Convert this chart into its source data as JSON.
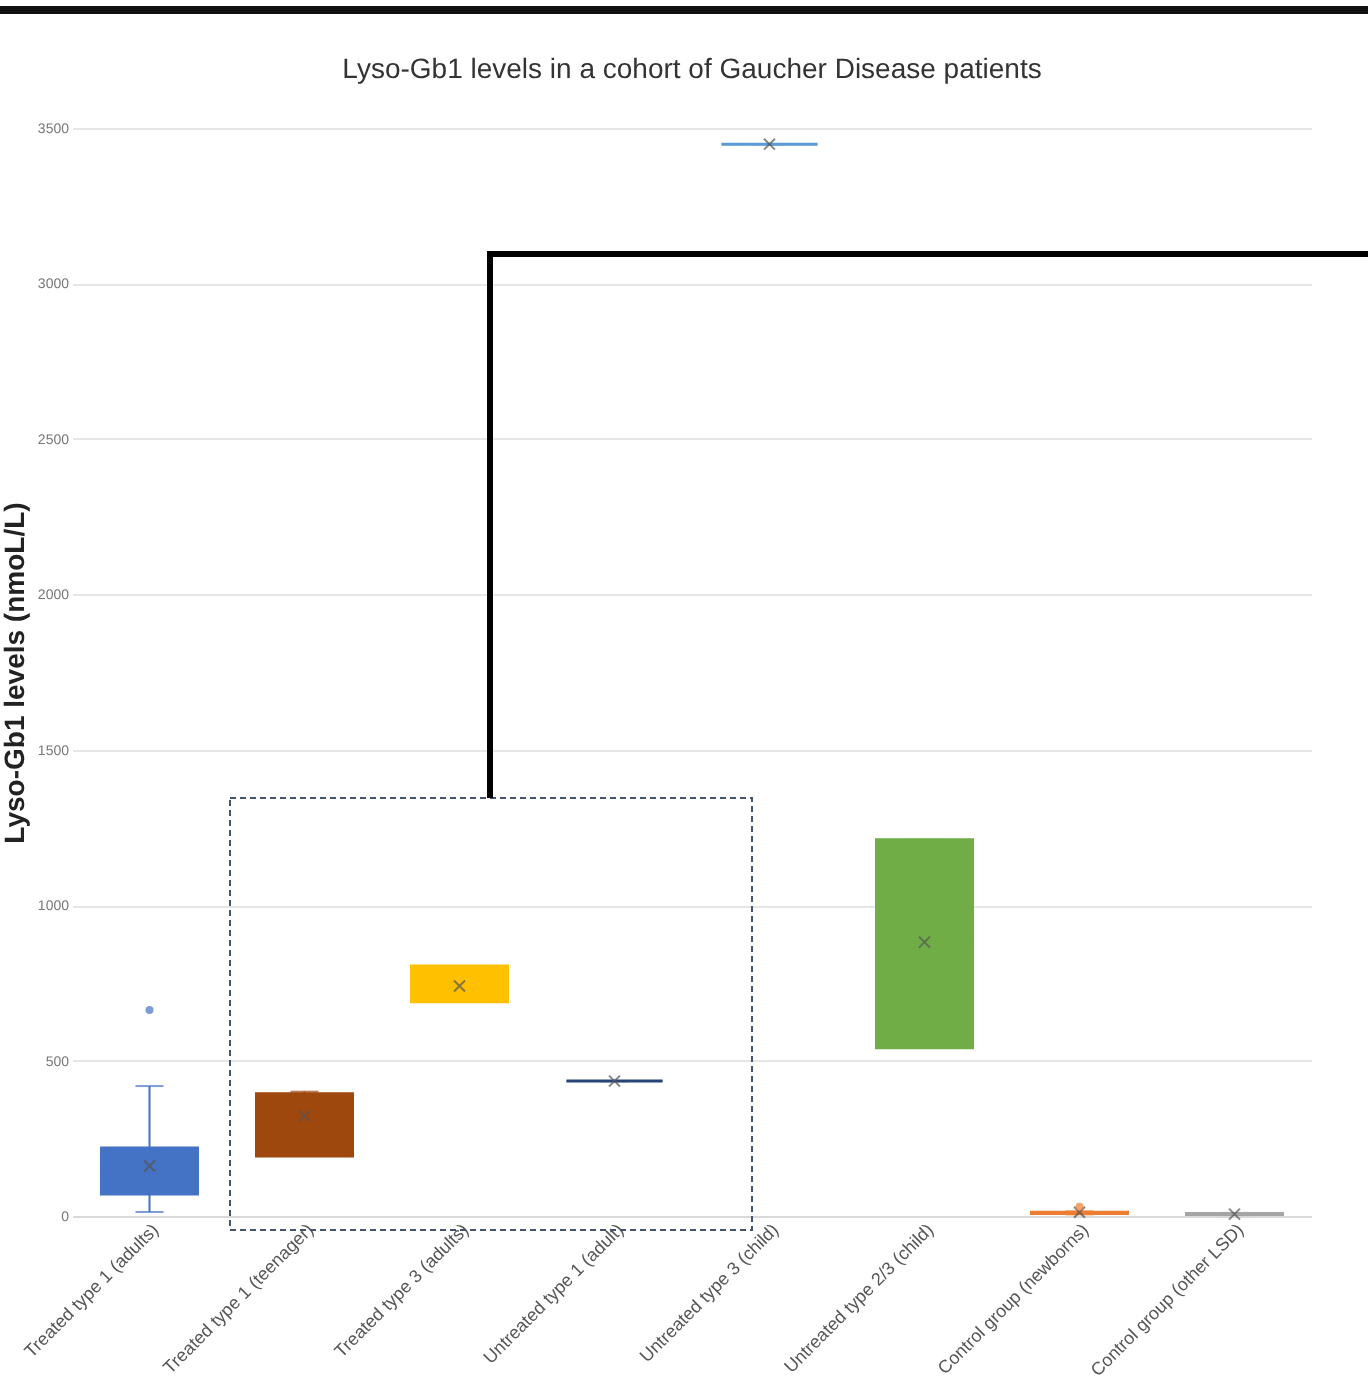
{
  "chart_data": {
    "type": "box",
    "title": "Lyso-Gb1 levels in a cohort of Gaucher Disease patients",
    "ylabel": "Lyso-Gb1 levels (nmoL/L)",
    "categories": [
      "Treated type 1 (adults)",
      "Treated type 1 (teenager)",
      "Treated type 3 (adults)",
      "Untreated type 1 (adult)",
      "Untreated type 3 (child)",
      "Untreated type 2/3 (child)",
      "Control group (newborns)",
      "Control group (other LSD)"
    ],
    "colors": [
      "#4472c4",
      "#9e480e",
      "#ffc000",
      "#264478",
      "#5b9bd5",
      "#70ad47",
      "#ed7d31",
      "#a5a5a5"
    ],
    "boxes": [
      {
        "low": 13,
        "q1": 71,
        "median": 140,
        "q3": 219,
        "high": 418,
        "mean": 161,
        "outliers": [
          663
        ]
      },
      {
        "low": 193,
        "q1": 193,
        "median": 310,
        "q3": 393,
        "high": 400,
        "mean": 322
      },
      {
        "low": 689,
        "q1": 689,
        "median": 740,
        "q3": 804,
        "high": 804,
        "mean": 740
      },
      {
        "low": 434,
        "q1": 434,
        "median": 434,
        "q3": 434,
        "high": 434,
        "mean": 434
      },
      {
        "low": 3448,
        "q1": 3448,
        "median": 3448,
        "q3": 3448,
        "high": 3448,
        "mean": 3448
      },
      {
        "low": 541,
        "q1": 541,
        "median": 881,
        "q3": 1210,
        "high": 1210,
        "mean": 881
      },
      {
        "low": 5,
        "q1": 8,
        "median": 10,
        "q3": 12,
        "high": 15,
        "mean": 12,
        "outliers": [
          30
        ]
      },
      {
        "low": 3,
        "q1": 5,
        "median": 6,
        "q3": 8,
        "high": 10,
        "mean": 6
      }
    ],
    "ylim": [
      0,
      3500
    ],
    "yticks": [
      0,
      500,
      1000,
      1500,
      2000,
      2500,
      3000,
      3500
    ],
    "grid": "y",
    "marker": "cross"
  }
}
